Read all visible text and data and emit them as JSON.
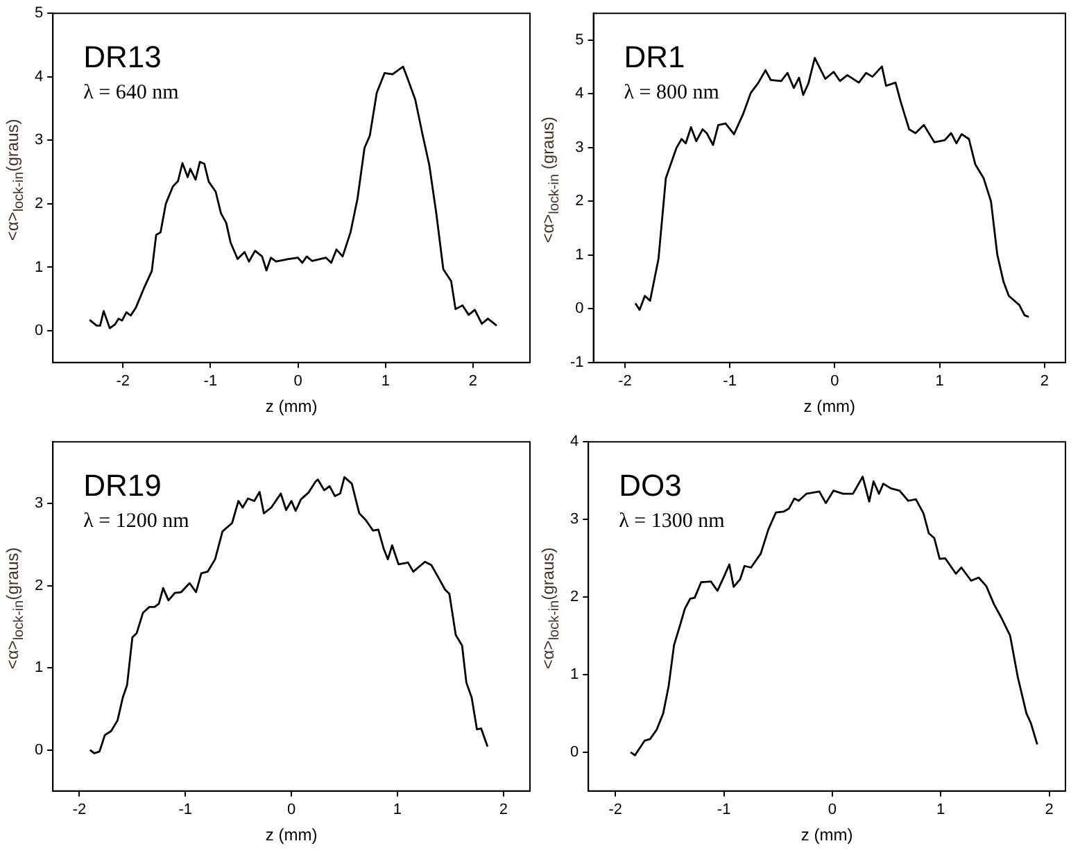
{
  "chart_data": [
    {
      "type": "line",
      "annotations": [
        "DR13",
        "λ = 640 nm"
      ],
      "xlabel": "z (mm)",
      "ylabel": "<α>$_{lock-in}$(graus)",
      "xlim": [
        -2.8,
        2.65
      ],
      "xticks": [
        -2,
        -1,
        0,
        1,
        2
      ],
      "ylim": [
        -0.5,
        5
      ],
      "yticks": [
        0,
        1,
        2,
        3,
        4,
        5
      ],
      "grid": false,
      "legend": false,
      "marker": "none",
      "x": [
        -2.38,
        -2.3,
        -2.26,
        -2.22,
        -2.15,
        -2.09,
        -2.05,
        -2.01,
        -1.96,
        -1.91,
        -1.85,
        -1.76,
        -1.67,
        -1.62,
        -1.57,
        -1.51,
        -1.43,
        -1.37,
        -1.32,
        -1.26,
        -1.23,
        -1.17,
        -1.12,
        -1.07,
        -1.02,
        -0.94,
        -0.88,
        -0.82,
        -0.77,
        -0.69,
        -0.61,
        -0.56,
        -0.49,
        -0.41,
        -0.36,
        -0.31,
        -0.25,
        -0.11,
        0,
        0.05,
        0.1,
        0.16,
        0.32,
        0.38,
        0.44,
        0.51,
        0.6,
        0.68,
        0.76,
        0.82,
        0.9,
        0.99,
        1.08,
        1.14,
        1.2,
        1.25,
        1.34,
        1.42,
        1.5,
        1.58,
        1.66,
        1.75,
        1.8,
        1.88,
        1.95,
        2.02,
        2.1,
        2.17,
        2.27
      ],
      "series": [
        {
          "color": "#000000",
          "values": [
            0.17,
            0.08,
            0.08,
            0.31,
            0.04,
            0.1,
            0.19,
            0.16,
            0.29,
            0.24,
            0.37,
            0.67,
            0.94,
            1.51,
            1.55,
            2.0,
            2.27,
            2.36,
            2.64,
            2.42,
            2.55,
            2.38,
            2.66,
            2.63,
            2.35,
            2.19,
            1.85,
            1.7,
            1.39,
            1.13,
            1.24,
            1.09,
            1.26,
            1.17,
            0.95,
            1.15,
            1.09,
            1.13,
            1.15,
            1.07,
            1.17,
            1.1,
            1.15,
            1.07,
            1.28,
            1.17,
            1.55,
            2.08,
            2.88,
            3.07,
            3.75,
            4.06,
            4.04,
            4.1,
            4.16,
            3.98,
            3.64,
            3.11,
            2.61,
            1.85,
            0.97,
            0.78,
            0.34,
            0.4,
            0.25,
            0.33,
            0.11,
            0.19,
            0.08
          ]
        }
      ]
    },
    {
      "type": "line",
      "annotations": [
        "DR1",
        "λ = 800 nm"
      ],
      "xlabel": "z (mm)",
      "ylabel": "<α>$_{lock-in}$ (graus)",
      "xlim": [
        -2.3,
        2.2
      ],
      "xticks": [
        -2,
        -1,
        0,
        1,
        2
      ],
      "ylim": [
        -1,
        5.5
      ],
      "yticks": [
        -1,
        0,
        1,
        2,
        3,
        4,
        5
      ],
      "grid": false,
      "legend": false,
      "marker": "none",
      "x": [
        -1.9,
        -1.86,
        -1.81,
        -1.76,
        -1.68,
        -1.61,
        -1.51,
        -1.46,
        -1.42,
        -1.37,
        -1.32,
        -1.26,
        -1.22,
        -1.16,
        -1.11,
        -1.04,
        -0.96,
        -0.87,
        -0.8,
        -0.73,
        -0.66,
        -0.61,
        -0.51,
        -0.45,
        -0.39,
        -0.34,
        -0.3,
        -0.25,
        -0.19,
        -0.09,
        -0.01,
        0.05,
        0.12,
        0.23,
        0.3,
        0.36,
        0.45,
        0.49,
        0.58,
        0.63,
        0.71,
        0.77,
        0.85,
        0.95,
        1.05,
        1.11,
        1.16,
        1.21,
        1.28,
        1.34,
        1.42,
        1.49,
        1.55,
        1.61,
        1.66,
        1.76,
        1.81,
        1.85
      ],
      "series": [
        {
          "color": "#000000",
          "values": [
            0.1,
            -0.02,
            0.24,
            0.15,
            0.93,
            2.43,
            2.99,
            3.16,
            3.08,
            3.38,
            3.12,
            3.34,
            3.27,
            3.05,
            3.42,
            3.45,
            3.25,
            3.64,
            4.02,
            4.2,
            4.44,
            4.26,
            4.24,
            4.39,
            4.11,
            4.3,
            3.98,
            4.2,
            4.67,
            4.28,
            4.41,
            4.24,
            4.35,
            4.21,
            4.39,
            4.32,
            4.51,
            4.15,
            4.21,
            3.85,
            3.34,
            3.27,
            3.42,
            3.1,
            3.14,
            3.27,
            3.08,
            3.25,
            3.16,
            2.69,
            2.43,
            2.0,
            1.01,
            0.5,
            0.24,
            0.07,
            -0.12,
            -0.15
          ]
        }
      ]
    },
    {
      "type": "line",
      "annotations": [
        "DR19",
        "λ = 1200 nm"
      ],
      "xlabel": "z (mm)",
      "ylabel": "<α>$_{lock-in}$(graus)",
      "xlim": [
        -2.25,
        2.25
      ],
      "xticks": [
        -2,
        -1,
        0,
        1,
        2
      ],
      "ylim": [
        -0.5,
        3.75
      ],
      "yticks": [
        0,
        1,
        2,
        3
      ],
      "grid": false,
      "legend": false,
      "marker": "none",
      "x": [
        -1.9,
        -1.86,
        -1.81,
        -1.76,
        -1.7,
        -1.64,
        -1.59,
        -1.55,
        -1.5,
        -1.46,
        -1.4,
        -1.34,
        -1.29,
        -1.25,
        -1.21,
        -1.16,
        -1.1,
        -1.04,
        -0.96,
        -0.9,
        -0.85,
        -0.79,
        -0.72,
        -0.65,
        -0.56,
        -0.5,
        -0.46,
        -0.41,
        -0.35,
        -0.3,
        -0.26,
        -0.19,
        -0.1,
        -0.05,
        0,
        0.04,
        0.09,
        0.16,
        0.23,
        0.25,
        0.31,
        0.36,
        0.41,
        0.46,
        0.5,
        0.57,
        0.64,
        0.7,
        0.77,
        0.82,
        0.87,
        0.91,
        0.95,
        1.01,
        1.1,
        1.15,
        1.26,
        1.32,
        1.39,
        1.45,
        1.49,
        1.55,
        1.61,
        1.65,
        1.7,
        1.75,
        1.79,
        1.85
      ],
      "series": [
        {
          "color": "#000000",
          "values": [
            0,
            -0.04,
            -0.02,
            0.18,
            0.23,
            0.36,
            0.64,
            0.79,
            1.37,
            1.42,
            1.67,
            1.74,
            1.74,
            1.78,
            1.97,
            1.82,
            1.91,
            1.92,
            2.03,
            1.92,
            2.15,
            2.17,
            2.32,
            2.66,
            2.76,
            3.03,
            2.95,
            3.06,
            3.03,
            3.14,
            2.88,
            2.95,
            3.12,
            2.92,
            3.03,
            2.91,
            3.05,
            3.13,
            3.27,
            3.29,
            3.16,
            3.21,
            3.09,
            3.12,
            3.32,
            3.24,
            2.88,
            2.8,
            2.67,
            2.68,
            2.45,
            2.32,
            2.49,
            2.26,
            2.28,
            2.17,
            2.29,
            2.25,
            2.09,
            1.95,
            1.9,
            1.4,
            1.27,
            0.82,
            0.64,
            0.25,
            0.26,
            0.04
          ]
        }
      ]
    },
    {
      "type": "line",
      "annotations": [
        "DO3",
        "λ = 1300 nm"
      ],
      "xlabel": "z (mm)",
      "ylabel": "<α>$_{lock-in}$(graus)",
      "xlim": [
        -2.25,
        2.15
      ],
      "xticks": [
        -2,
        -1,
        0,
        1,
        2
      ],
      "ylim": [
        -0.5,
        4
      ],
      "yticks": [
        0,
        1,
        2,
        3,
        4
      ],
      "grid": false,
      "legend": false,
      "marker": "none",
      "x": [
        -1.86,
        -1.82,
        -1.73,
        -1.68,
        -1.62,
        -1.56,
        -1.51,
        -1.46,
        -1.41,
        -1.36,
        -1.31,
        -1.27,
        -1.21,
        -1.12,
        -1.06,
        -1.0,
        -0.95,
        -0.91,
        -0.85,
        -0.81,
        -0.75,
        -0.66,
        -0.59,
        -0.52,
        -0.45,
        -0.4,
        -0.35,
        -0.31,
        -0.24,
        -0.12,
        -0.06,
        0.01,
        0.1,
        0.19,
        0.28,
        0.34,
        0.38,
        0.43,
        0.47,
        0.54,
        0.62,
        0.7,
        0.77,
        0.84,
        0.89,
        0.94,
        0.99,
        1.04,
        1.1,
        1.14,
        1.19,
        1.28,
        1.35,
        1.42,
        1.49,
        1.56,
        1.64,
        1.71,
        1.79,
        1.83,
        1.89
      ],
      "series": [
        {
          "color": "#000000",
          "values": [
            0,
            -0.04,
            0.15,
            0.17,
            0.29,
            0.5,
            0.85,
            1.38,
            1.61,
            1.85,
            1.98,
            1.99,
            2.19,
            2.2,
            2.08,
            2.26,
            2.42,
            2.13,
            2.23,
            2.4,
            2.38,
            2.56,
            2.87,
            3.09,
            3.1,
            3.14,
            3.27,
            3.24,
            3.33,
            3.36,
            3.21,
            3.37,
            3.33,
            3.33,
            3.55,
            3.23,
            3.49,
            3.33,
            3.46,
            3.4,
            3.37,
            3.24,
            3.26,
            3.08,
            2.82,
            2.76,
            2.49,
            2.5,
            2.38,
            2.3,
            2.38,
            2.21,
            2.25,
            2.14,
            1.91,
            1.73,
            1.5,
            0.97,
            0.5,
            0.38,
            0.1
          ]
        }
      ]
    }
  ]
}
